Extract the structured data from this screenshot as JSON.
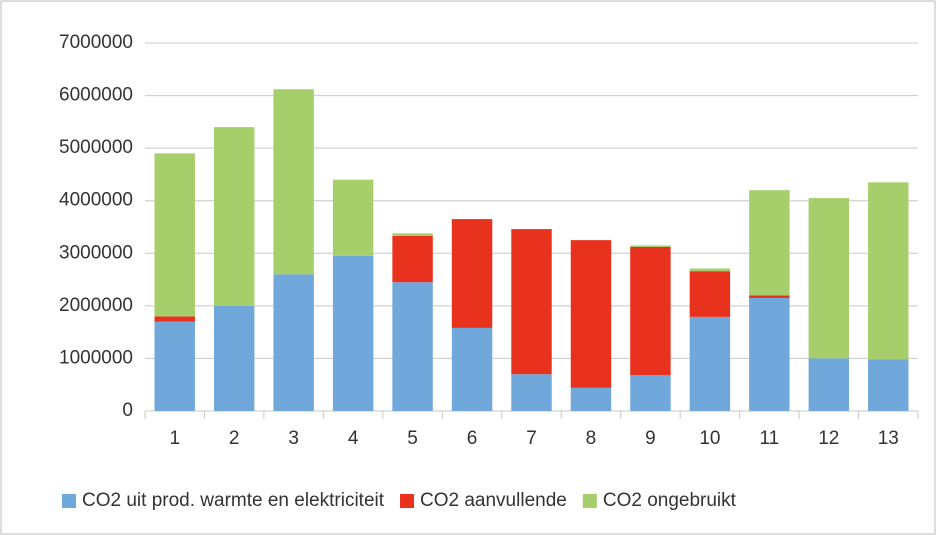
{
  "chart_data": {
    "type": "stacked_bar",
    "categories": [
      "1",
      "2",
      "3",
      "4",
      "5",
      "6",
      "7",
      "8",
      "9",
      "10",
      "11",
      "12",
      "13"
    ],
    "series": [
      {
        "name": "CO2 uit prod. warmte en elektriciteit",
        "color": "#70a8dc",
        "values": [
          1700000,
          2000000,
          2600000,
          2950000,
          2450000,
          1580000,
          700000,
          440000,
          680000,
          1790000,
          2150000,
          1000000,
          980000
        ]
      },
      {
        "name": "CO2 aanvullende",
        "color": "#e8321e",
        "values": [
          100000,
          0,
          0,
          0,
          880000,
          2070000,
          2760000,
          2810000,
          2440000,
          870000,
          50000,
          0,
          0
        ]
      },
      {
        "name": "CO2 ongebruikt",
        "color": "#a6cf6c",
        "values": [
          3100000,
          3400000,
          3520000,
          1450000,
          50000,
          0,
          0,
          0,
          30000,
          50000,
          2000000,
          3050000,
          3370000
        ]
      }
    ],
    "ylim": [
      0,
      7000000
    ],
    "yticks": [
      0,
      1000000,
      2000000,
      3000000,
      4000000,
      5000000,
      6000000,
      7000000
    ],
    "grid": true,
    "legend": "bottom"
  }
}
